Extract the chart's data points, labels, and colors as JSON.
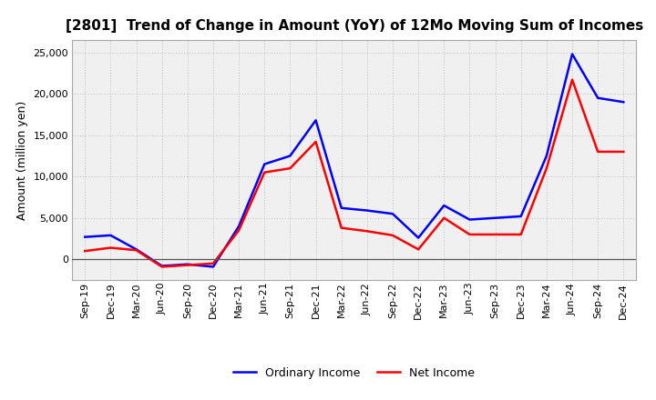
{
  "title": "[2801]  Trend of Change in Amount (YoY) of 12Mo Moving Sum of Incomes",
  "ylabel": "Amount (million yen)",
  "x_labels": [
    "Sep-19",
    "Dec-19",
    "Mar-20",
    "Jun-20",
    "Sep-20",
    "Dec-20",
    "Mar-21",
    "Jun-21",
    "Sep-21",
    "Dec-21",
    "Mar-22",
    "Jun-22",
    "Sep-22",
    "Dec-22",
    "Mar-23",
    "Jun-23",
    "Sep-23",
    "Dec-23",
    "Mar-24",
    "Jun-24",
    "Sep-24",
    "Dec-24"
  ],
  "ordinary_income": [
    2700,
    2900,
    1200,
    -800,
    -600,
    -900,
    4000,
    11500,
    12500,
    16800,
    6200,
    5900,
    5500,
    2600,
    6500,
    4800,
    5000,
    5200,
    12500,
    24800,
    19500,
    19000
  ],
  "net_income": [
    1000,
    1400,
    1100,
    -900,
    -700,
    -500,
    3500,
    10500,
    11000,
    14200,
    3800,
    3400,
    2900,
    1200,
    5000,
    3000,
    3000,
    3000,
    11000,
    21700,
    13000,
    13000
  ],
  "ordinary_color": "#0000FF",
  "net_color": "#FF0000",
  "background_color": "#FFFFFF",
  "plot_bg_color": "#F0F0F0",
  "grid_color": "#BBBBBB",
  "ylim": [
    -2500,
    26500
  ],
  "yticks": [
    0,
    5000,
    10000,
    15000,
    20000,
    25000
  ],
  "line_width": 1.8,
  "title_fontsize": 11,
  "tick_fontsize": 8,
  "ylabel_fontsize": 9,
  "legend_fontsize": 9,
  "legend_labels": [
    "Ordinary Income",
    "Net Income"
  ]
}
